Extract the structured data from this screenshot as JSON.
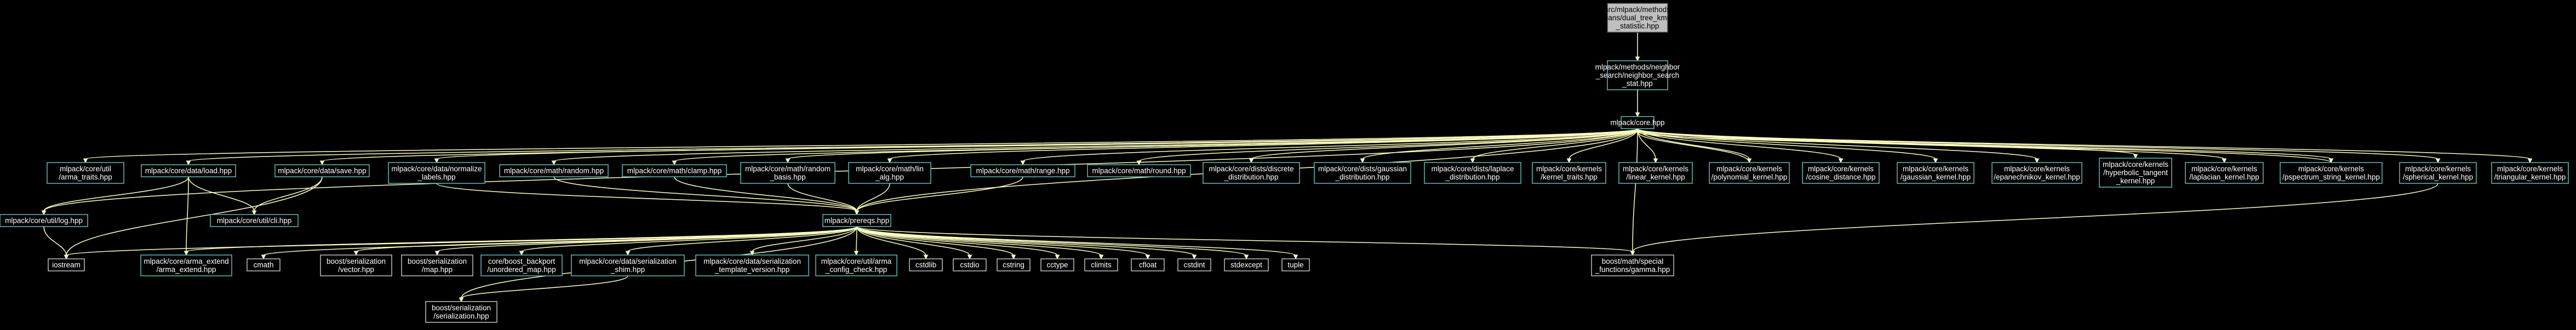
{
  "graph": {
    "nodes": [
      {
        "id": "root",
        "label": "src/mlpack/methods\n/kmeans/dual_tree_kmeans\n_statistic.hpp",
        "kind": "root"
      },
      {
        "id": "ns_stat",
        "label": "mlpack/methods/neighbor\n_search/neighbor_search\n_stat.hpp",
        "kind": "doc"
      },
      {
        "id": "core",
        "label": "mlpack/core.hpp",
        "kind": "doc"
      },
      {
        "id": "arma_traits",
        "label": "mlpack/core/util\n/arma_traits.hpp",
        "kind": "doc"
      },
      {
        "id": "data_load",
        "label": "mlpack/core/data/load.hpp",
        "kind": "doc"
      },
      {
        "id": "data_save",
        "label": "mlpack/core/data/save.hpp",
        "kind": "doc"
      },
      {
        "id": "normalize_labels",
        "label": "mlpack/core/data/normalize\n_labels.hpp",
        "kind": "doc"
      },
      {
        "id": "random",
        "label": "mlpack/core/math/random.hpp",
        "kind": "doc"
      },
      {
        "id": "clamp",
        "label": "mlpack/core/math/clamp.hpp",
        "kind": "doc"
      },
      {
        "id": "random_basis",
        "label": "mlpack/core/math/random\n_basis.hpp",
        "kind": "doc"
      },
      {
        "id": "lin_alg",
        "label": "mlpack/core/math/lin\n_alg.hpp",
        "kind": "doc"
      },
      {
        "id": "range",
        "label": "mlpack/core/math/range.hpp",
        "kind": "doc"
      },
      {
        "id": "round",
        "label": "mlpack/core/math/round.hpp",
        "kind": "doc"
      },
      {
        "id": "discrete",
        "label": "mlpack/core/dists/discrete\n_distribution.hpp",
        "kind": "doc"
      },
      {
        "id": "gaussian_dist",
        "label": "mlpack/core/dists/gaussian\n_distribution.hpp",
        "kind": "doc"
      },
      {
        "id": "laplace_dist",
        "label": "mlpack/core/dists/laplace\n_distribution.hpp",
        "kind": "doc"
      },
      {
        "id": "kernel_traits",
        "label": "mlpack/core/kernels\n/kernel_traits.hpp",
        "kind": "doc"
      },
      {
        "id": "linear_kernel",
        "label": "mlpack/core/kernels\n/linear_kernel.hpp",
        "kind": "doc"
      },
      {
        "id": "poly_kernel",
        "label": "mlpack/core/kernels\n/polynomial_kernel.hpp",
        "kind": "doc"
      },
      {
        "id": "cosine",
        "label": "mlpack/core/kernels\n/cosine_distance.hpp",
        "kind": "doc"
      },
      {
        "id": "gauss_kernel",
        "label": "mlpack/core/kernels\n/gaussian_kernel.hpp",
        "kind": "doc"
      },
      {
        "id": "epan_kernel",
        "label": "mlpack/core/kernels\n/epanechnikov_kernel.hpp",
        "kind": "doc"
      },
      {
        "id": "hyper_kernel",
        "label": "mlpack/core/kernels\n/hyperbolic_tangent\n_kernel.hpp",
        "kind": "doc"
      },
      {
        "id": "laplace_kernel",
        "label": "mlpack/core/kernels\n/laplacian_kernel.hpp",
        "kind": "doc"
      },
      {
        "id": "pspec_kernel",
        "label": "mlpack/core/kernels\n/pspectrum_string_kernel.hpp",
        "kind": "doc"
      },
      {
        "id": "spherical",
        "label": "mlpack/core/kernels\n/spherical_kernel.hpp",
        "kind": "doc"
      },
      {
        "id": "triangular",
        "label": "mlpack/core/kernels\n/triangular_kernel.hpp",
        "kind": "doc"
      },
      {
        "id": "util_log",
        "label": "mlpack/core/util/log.hpp",
        "kind": "doc"
      },
      {
        "id": "util_cli",
        "label": "mlpack/core/util/cli.hpp",
        "kind": "doc"
      },
      {
        "id": "prereqs",
        "label": "mlpack/prereqs.hpp",
        "kind": "doc"
      },
      {
        "id": "iostream",
        "label": "iostream",
        "kind": "sys"
      },
      {
        "id": "arma_extend",
        "label": "mlpack/core/arma_extend\n/arma_extend.hpp",
        "kind": "doc"
      },
      {
        "id": "cmath",
        "label": "cmath",
        "kind": "sys"
      },
      {
        "id": "ser_vector",
        "label": "boost/serialization\n/vector.hpp",
        "kind": "sys"
      },
      {
        "id": "ser_map",
        "label": "boost/serialization\n/map.hpp",
        "kind": "sys"
      },
      {
        "id": "unordered_map",
        "label": "core/boost_backport\n/unordered_map.hpp",
        "kind": "doc"
      },
      {
        "id": "ser_shim",
        "label": "mlpack/core/data/serialization\n_shim.hpp",
        "kind": "doc"
      },
      {
        "id": "ser_template",
        "label": "mlpack/core/data/serialization\n_template_version.hpp",
        "kind": "doc"
      },
      {
        "id": "arma_config",
        "label": "mlpack/core/util/arma\n_config_check.hpp",
        "kind": "doc"
      },
      {
        "id": "cstdlib",
        "label": "cstdlib",
        "kind": "sys"
      },
      {
        "id": "cstdio",
        "label": "cstdio",
        "kind": "sys"
      },
      {
        "id": "cstring",
        "label": "cstring",
        "kind": "sys"
      },
      {
        "id": "cctype",
        "label": "cctype",
        "kind": "sys"
      },
      {
        "id": "climits",
        "label": "climits",
        "kind": "sys"
      },
      {
        "id": "cfloat",
        "label": "cfloat",
        "kind": "sys"
      },
      {
        "id": "cstdint",
        "label": "cstdint",
        "kind": "sys"
      },
      {
        "id": "stdexcept",
        "label": "stdexcept",
        "kind": "sys"
      },
      {
        "id": "tuple",
        "label": "tuple",
        "kind": "sys"
      },
      {
        "id": "gamma",
        "label": "boost/math/special\n_functions/gamma.hpp",
        "kind": "sys"
      },
      {
        "id": "ser_serialization",
        "label": "boost/serialization\n/serialization.hpp",
        "kind": "sys"
      }
    ]
  }
}
